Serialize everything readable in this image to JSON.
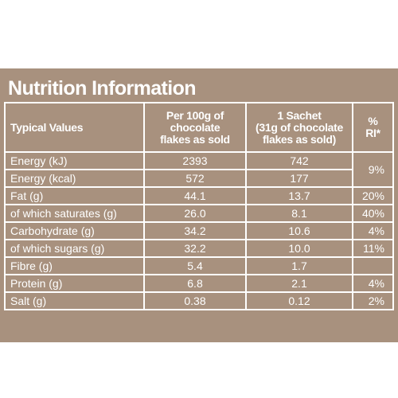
{
  "title": "Nutrition Information",
  "headers": [
    [
      "Typical Values"
    ],
    [
      "Per 100g of",
      "chocolate",
      "flakes as sold"
    ],
    [
      "1 Sachet",
      "(31g of chocolate",
      "flakes as sold)"
    ],
    [
      "%",
      "RI*"
    ]
  ],
  "rows": [
    [
      "Energy (kJ)",
      "2393",
      "742",
      "9%"
    ],
    [
      "Energy (kcal)",
      "572",
      "177"
    ],
    [
      "Fat (g)",
      "44.1",
      "13.7",
      "20%"
    ],
    [
      "of which saturates (g)",
      "26.0",
      "8.1",
      "40%"
    ],
    [
      "Carbohydrate (g)",
      "34.2",
      "10.6",
      "4%"
    ],
    [
      "of which sugars (g)",
      "32.2",
      "10.0",
      "11%"
    ],
    [
      "Fibre (g)",
      "5.4",
      "1.7"
    ],
    [
      "Protein (g)",
      "6.8",
      "2.1",
      "4%"
    ],
    [
      "Salt (g)",
      "0.38",
      "0.12",
      "2%"
    ]
  ]
}
